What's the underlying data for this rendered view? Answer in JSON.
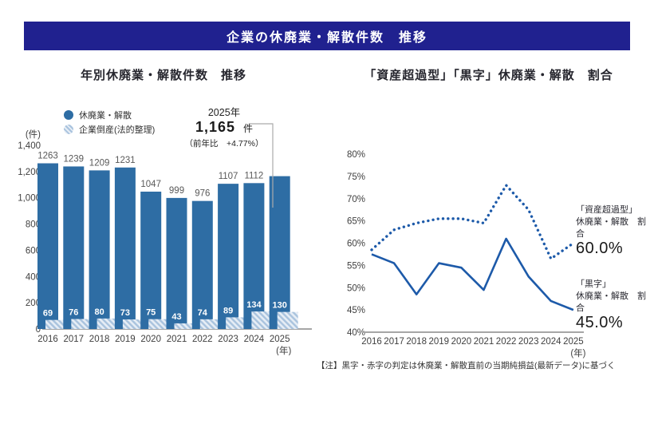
{
  "page": {
    "header_title": "企業の休廃業・解散件数　推移",
    "footnote": "【注】黒字・赤字の判定は休廃業・解散直前の当期純損益(最新データ)に基づく"
  },
  "left_chart": {
    "title": "年別休廃業・解散件数　推移",
    "legend": [
      {
        "label": "休廃業・解散",
        "swatch": "solid"
      },
      {
        "label": "企業倒産(法的整理)",
        "swatch": "hatched"
      }
    ],
    "annotation": {
      "year": "2025年",
      "value": "1,165",
      "unit": "件",
      "yoy": "（前年比　+4.77%）"
    }
  },
  "right_chart": {
    "title": "「資産超過型」「黒字」休廃業・解散　割合",
    "surplus_label": {
      "line1": "「資産超過型」",
      "line2": "休廃業・解散　割合",
      "value": "60.0%"
    },
    "black_label": {
      "line1": "「黒字」",
      "line2": "休廃業・解散　割合",
      "value": "45.0%"
    }
  },
  "chart_data": [
    {
      "type": "bar",
      "title": "年別休廃業・解散件数　推移",
      "categories": [
        "2016",
        "2017",
        "2018",
        "2019",
        "2020",
        "2021",
        "2022",
        "2023",
        "2024",
        "2025"
      ],
      "series": [
        {
          "name": "休廃業・解散",
          "key": "closure",
          "values": [
            1263,
            1239,
            1209,
            1231,
            1047,
            999,
            976,
            1107,
            1112,
            1165
          ],
          "color": "#2e6da4",
          "style": "solid"
        },
        {
          "name": "企業倒産(法的整理)",
          "key": "bankruptcy",
          "values": [
            69,
            76,
            80,
            73,
            75,
            43,
            74,
            89,
            134,
            130
          ],
          "color": "#bcd0e6",
          "style": "hatched"
        }
      ],
      "ylabel": "(件)",
      "ylim": [
        0,
        1400
      ],
      "ytick_step": 200,
      "yticks": [
        "1,400",
        "1,200",
        "1,000",
        "800",
        "600",
        "400",
        "200",
        "0"
      ],
      "xlabel_suffix": "(年)",
      "grid": false,
      "notes": "2025 bar has no top label; annotated as 1,165件 (前年比 +4.77%)"
    },
    {
      "type": "line",
      "title": "「資産超過型」「黒字」休廃業・解散　割合",
      "x": [
        "2016",
        "2017",
        "2018",
        "2019",
        "2020",
        "2021",
        "2022",
        "2023",
        "2024",
        "2025"
      ],
      "series": [
        {
          "name": "「資産超過型」休廃業・解散　割合",
          "key": "surplus",
          "values": [
            58.5,
            63,
            64.5,
            65.5,
            65.5,
            64.5,
            73,
            67.5,
            56.5,
            60
          ],
          "style": "dotted",
          "color": "#1d5aa9",
          "end_label": "60.0%"
        },
        {
          "name": "「黒字」休廃業・解散　割合",
          "key": "black",
          "values": [
            57.5,
            55.5,
            48.5,
            55.5,
            54.5,
            49.5,
            61,
            52.5,
            47,
            45
          ],
          "style": "solid",
          "color": "#1d5aa9",
          "end_label": "45.0%"
        }
      ],
      "ylim": [
        40,
        80
      ],
      "ytick_step": 5,
      "ytick_format": "percent",
      "xlabel_suffix": "(年)",
      "grid": false,
      "legend_position": "right-of-line-endpoints"
    }
  ]
}
